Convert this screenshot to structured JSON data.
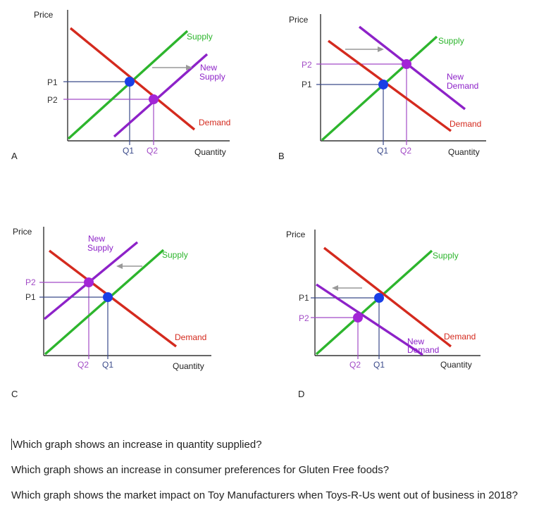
{
  "colors": {
    "supply": "#2db52d",
    "demand": "#d42a1e",
    "new_curve": "#8d22c8",
    "original_point": "#1a3fe6",
    "new_point": "#a325d6",
    "axis": "#333333",
    "guide_original": "#3a4a8a",
    "guide_new": "#a24bc6",
    "shift_arrow": "#999999"
  },
  "panels": [
    {
      "id": "A",
      "letter": "A",
      "labels": {
        "price": "Price",
        "quantity": "Quantity",
        "supply": "Supply",
        "demand": "Demand",
        "new_curve": "New\nSupply",
        "p_upper": "P1",
        "p_lower": "P2",
        "q_left": "Q1",
        "q_right": "Q2"
      },
      "shift": "supply-right"
    },
    {
      "id": "B",
      "letter": "B",
      "labels": {
        "price": "Price",
        "quantity": "Quantity",
        "supply": "Supply",
        "demand": "Demand",
        "new_curve": "New\nDemand",
        "p_upper": "P2",
        "p_lower": "P1",
        "q_left": "Q1",
        "q_right": "Q2"
      },
      "shift": "demand-right"
    },
    {
      "id": "C",
      "letter": "C",
      "labels": {
        "price": "Price",
        "quantity": "Quantity",
        "supply": "Supply",
        "demand": "Demand",
        "new_curve": "New\nSupply",
        "p_upper": "P2",
        "p_lower": "P1",
        "q_left": "Q2",
        "q_right": "Q1"
      },
      "shift": "supply-left"
    },
    {
      "id": "D",
      "letter": "D",
      "labels": {
        "price": "Price",
        "quantity": "Quantity",
        "supply": "Supply",
        "demand": "Demand",
        "new_curve": "New\nDemand",
        "p_upper": "P1",
        "p_lower": "P2",
        "q_left": "Q2",
        "q_right": "Q1"
      },
      "shift": "demand-left"
    }
  ],
  "questions": [
    "Which graph shows an increase in quantity supplied?",
    "Which graph shows an increase in consumer preferences for Gluten Free foods?",
    "Which graph shows the market impact on Toy Manufacturers when Toys-R-Us went out of business in 2018?"
  ]
}
